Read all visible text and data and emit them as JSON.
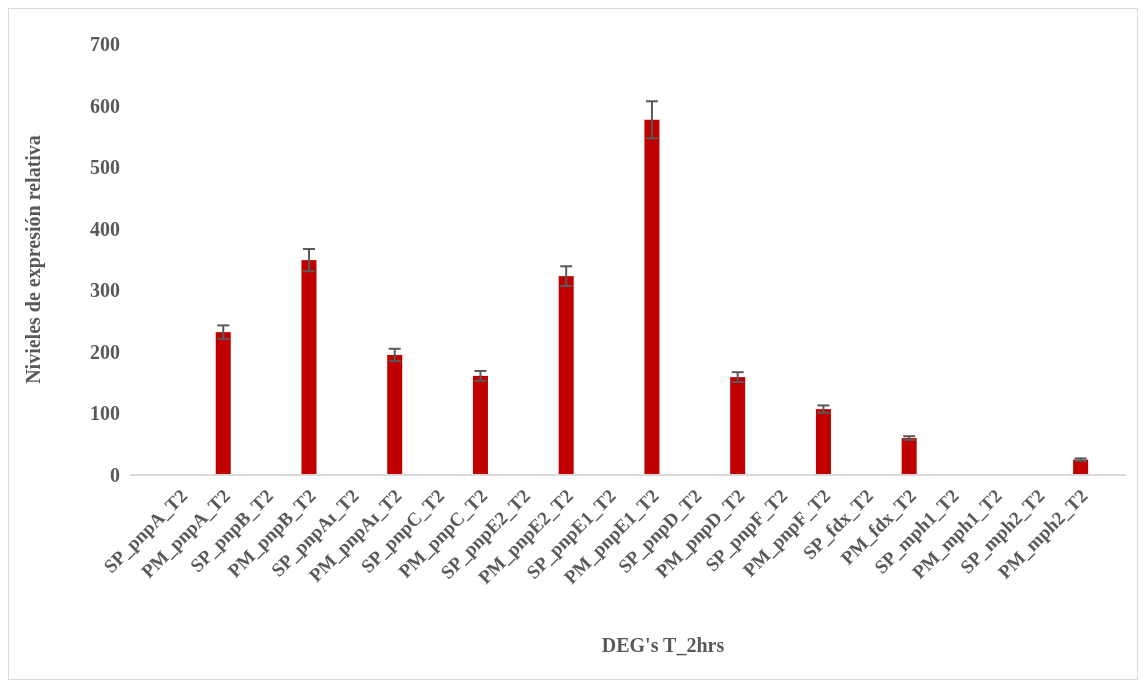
{
  "chart_data": {
    "type": "bar",
    "xlabel": "DEG's T_2hrs",
    "ylabel": "Nivieles de expresión relativa",
    "categories": [
      "SP_pnpA_T2",
      "PM_pnpA_T2",
      "SP_pnpB_T2",
      "PM_pnpB_T2",
      "SP_pnpAɪ_T2",
      "PM_pnpAɪ_T2",
      "SP_pnpC_T2",
      "PM_pnpC_T2",
      "SP_pnpE2_T2",
      "PM_pnpE2_T2",
      "SP_pnpE1_T2",
      "PM_pnpE1_T2",
      "SP_pnpD_T2",
      "PM_pnpD_T2",
      "SP_pnpF_T2",
      "PM_pnpF_T2",
      "SP_fdx_T2",
      "PM_fdx_T2",
      "SP_mph1_T2",
      "PM_mph1_T2",
      "SP_mph2_T2",
      "PM_mph2_T2"
    ],
    "values": [
      1,
      232,
      1,
      349,
      1,
      195,
      1,
      161,
      1,
      323,
      1,
      577,
      1,
      159,
      1,
      107,
      1,
      60,
      1,
      1,
      1,
      25
    ],
    "errors": [
      null,
      11,
      null,
      18,
      null,
      10,
      null,
      8,
      null,
      16,
      null,
      30,
      null,
      8,
      null,
      6,
      null,
      3,
      null,
      null,
      null,
      2
    ],
    "color": "#c00000",
    "ylim": [
      0,
      700
    ],
    "yticks": [
      0,
      100,
      200,
      300,
      400,
      500,
      600,
      700
    ],
    "grid": false
  }
}
